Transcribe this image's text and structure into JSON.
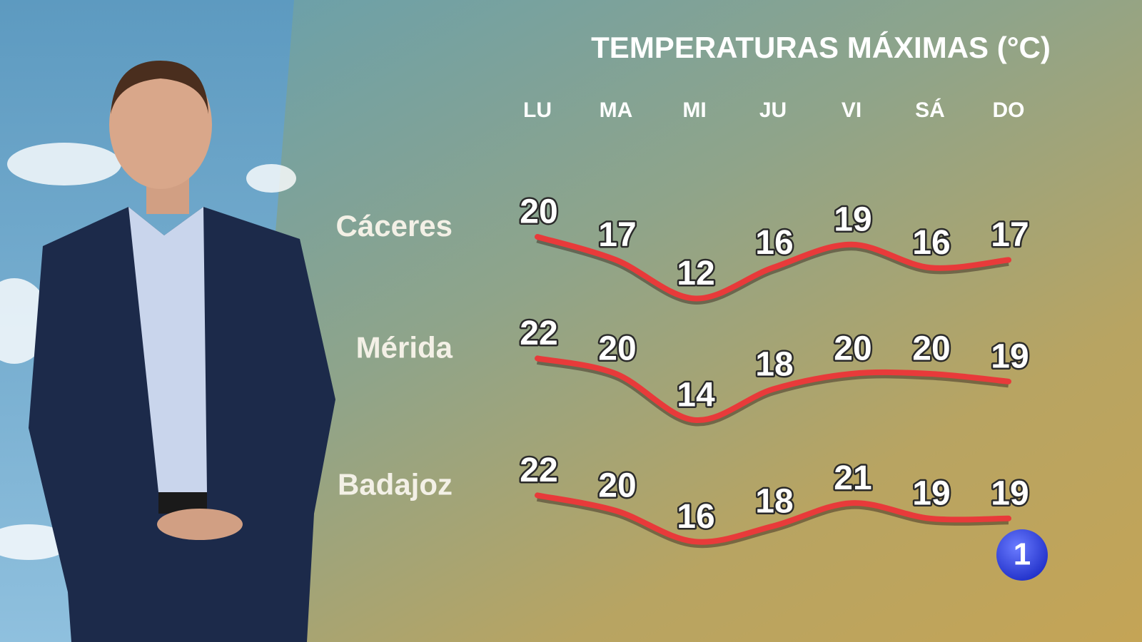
{
  "chart_data": {
    "type": "line",
    "title": "TEMPERATURAS MÁXIMAS (°C)",
    "categories": [
      "LU",
      "MA",
      "MI",
      "JU",
      "VI",
      "SÁ",
      "DO"
    ],
    "series": [
      {
        "name": "Cáceres",
        "color": "#e83a3a",
        "values": [
          20,
          17,
          12,
          16,
          19,
          16,
          17
        ]
      },
      {
        "name": "Mérida",
        "color": "#e83a3a",
        "values": [
          22,
          20,
          14,
          18,
          20,
          20,
          19
        ]
      },
      {
        "name": "Badajoz",
        "color": "#e83a3a",
        "values": [
          22,
          20,
          16,
          18,
          21,
          19,
          19
        ]
      }
    ]
  },
  "logo": "1"
}
